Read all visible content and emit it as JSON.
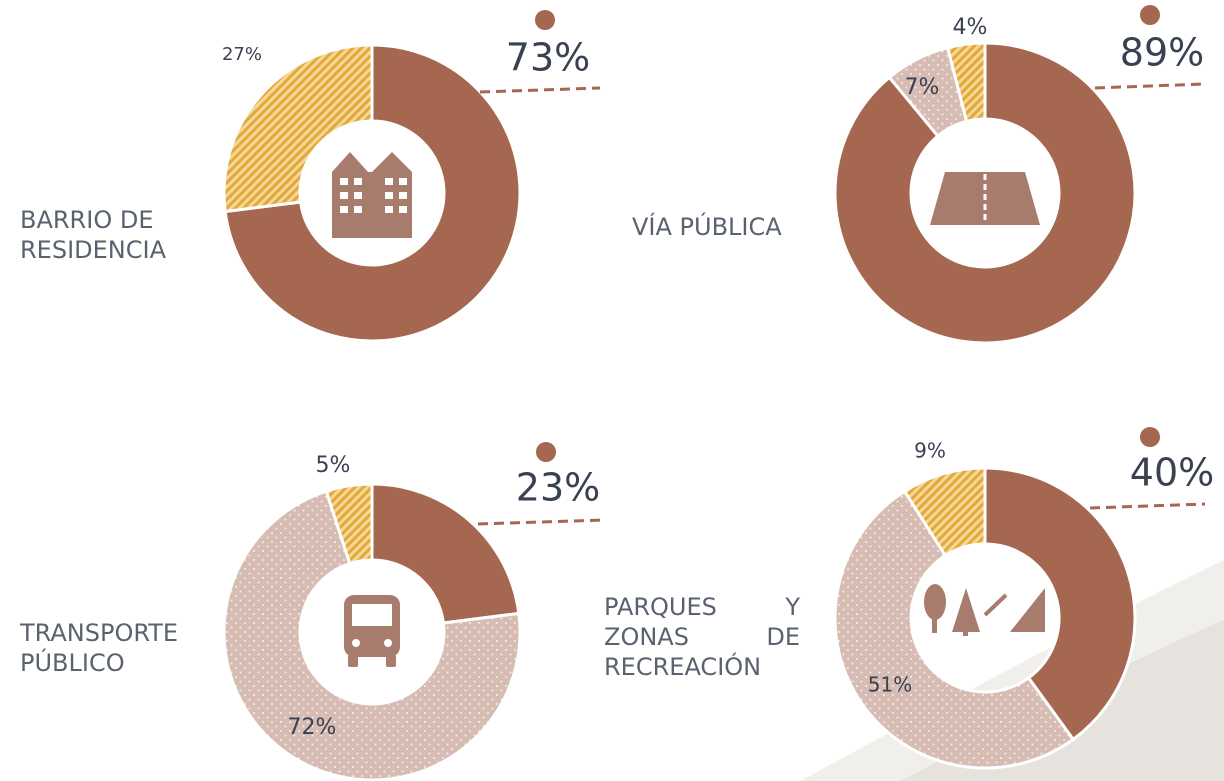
{
  "chart_data": [
    {
      "type": "pie",
      "title": "BARRIO DE RESIDENCIA",
      "values": [
        73,
        27
      ],
      "value_labels": [
        "73%",
        "27%"
      ],
      "colors": [
        "#a5674f",
        "#e8b44a"
      ],
      "patterns": [
        "solid",
        "hatch"
      ],
      "donut": true
    },
    {
      "type": "pie",
      "title": "VÍA PÚBLICA",
      "values": [
        89,
        7,
        4
      ],
      "value_labels": [
        "89%",
        "7%",
        "4%"
      ],
      "colors": [
        "#a5674f",
        "#d6bcb2",
        "#e8b44a"
      ],
      "patterns": [
        "solid",
        "dots",
        "hatch"
      ],
      "donut": true
    },
    {
      "type": "pie",
      "title": "TRANSPORTE PÚBLICO",
      "values": [
        23,
        72,
        5
      ],
      "value_labels": [
        "23%",
        "72%",
        "5%"
      ],
      "colors": [
        "#a5674f",
        "#d6bcb2",
        "#e8b44a"
      ],
      "patterns": [
        "solid",
        "dots",
        "hatch"
      ],
      "donut": true
    },
    {
      "type": "pie",
      "title": "PARQUES Y ZONAS DE RECREACIÓN",
      "values": [
        40,
        51,
        9
      ],
      "value_labels": [
        "40%",
        "51%",
        "9%"
      ],
      "colors": [
        "#a5674f",
        "#d6bcb2",
        "#e8b44a"
      ],
      "patterns": [
        "solid",
        "dots",
        "hatch"
      ],
      "donut": true
    }
  ]
}
